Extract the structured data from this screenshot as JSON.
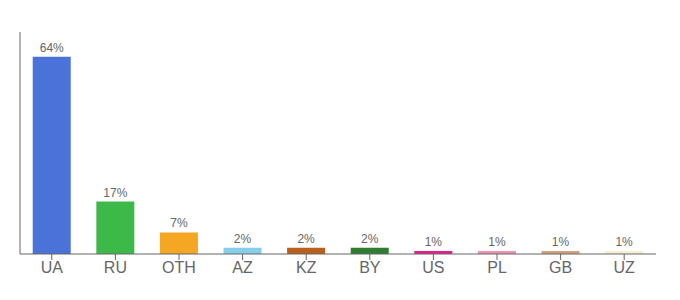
{
  "chart_data": {
    "type": "bar",
    "categories": [
      "UA",
      "RU",
      "OTH",
      "AZ",
      "KZ",
      "BY",
      "US",
      "PL",
      "GB",
      "UZ"
    ],
    "values": [
      64,
      17,
      7,
      2,
      2,
      2,
      1,
      1,
      1,
      1
    ],
    "value_labels": [
      "64%",
      "17%",
      "7%",
      "2%",
      "2%",
      "2%",
      "1%",
      "1%",
      "1%",
      "1%"
    ],
    "colors": [
      "#4a72d9",
      "#3db94a",
      "#f5a623",
      "#87ceeb",
      "#b8601e",
      "#2e7d32",
      "#e91e8c",
      "#f48fb1",
      "#d2a080",
      "#f5f0d0"
    ],
    "ylim": [
      0,
      72
    ],
    "tick_labels": "x",
    "grid": false
  }
}
